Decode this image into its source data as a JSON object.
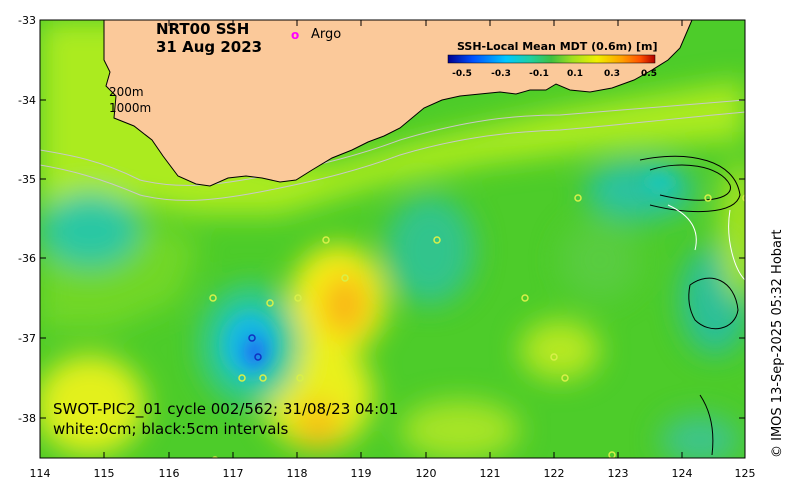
{
  "title": {
    "product": "NRT00 SSH",
    "date": "31 Aug 2023"
  },
  "legend": {
    "argo_symbol": "o",
    "argo_label": "Argo"
  },
  "colorbar": {
    "title": "SSH-Local Mean MDT (0.6m) [m]",
    "ticks": [
      "-0.5",
      "-0.3",
      "-0.1",
      "0.1",
      "0.3",
      "0.5"
    ],
    "colors": [
      "#00008f",
      "#0050ff",
      "#00c8ff",
      "#20d0a0",
      "#40c040",
      "#a0e020",
      "#f0f000",
      "#ffa000",
      "#ff5000",
      "#b00000"
    ]
  },
  "isobaths": [
    "200m",
    "1000m"
  ],
  "pass_info": {
    "line1": "SWOT-PIC2_01 cycle 002/562; 31/08/23 04:01",
    "line2": "white:0cm; black:5cm intervals"
  },
  "credit": "© IMOS 13-Sep-2025 05:32 Hobart",
  "axes": {
    "x_ticks": [
      "114",
      "115",
      "116",
      "117",
      "118",
      "119",
      "120",
      "121",
      "122",
      "123",
      "124",
      "125"
    ],
    "y_ticks": [
      "-33",
      "-34",
      "-35",
      "-36",
      "-37",
      "-38"
    ],
    "x_range": [
      114,
      125
    ],
    "y_range": [
      -38.55,
      -33
    ]
  },
  "colors": {
    "land": "#fbc99a",
    "sea_base": "#4dcc2a",
    "argo_marker": "#ff00ff"
  }
}
